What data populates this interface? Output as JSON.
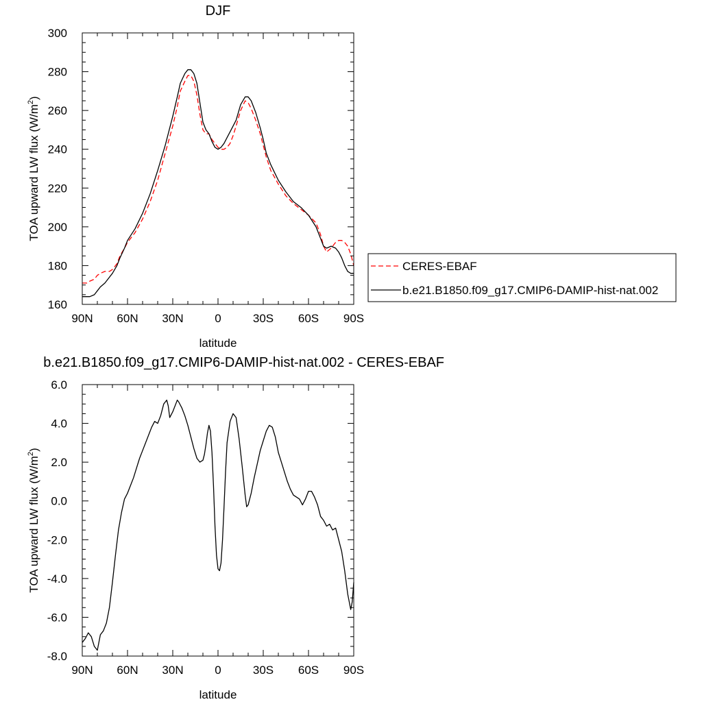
{
  "chart_data": [
    {
      "type": "line",
      "title": "DJF",
      "xlabel": "latitude",
      "ylabel_main": "TOA upward LW flux (W/m",
      "ylabel_sup": "2",
      "ylabel_close": ")",
      "xlim": [
        90,
        -90
      ],
      "ylim": [
        160,
        300
      ],
      "x_ticks": [
        {
          "value": 90,
          "label": "90N"
        },
        {
          "value": 60,
          "label": "60N"
        },
        {
          "value": 30,
          "label": "30N"
        },
        {
          "value": 0,
          "label": "0"
        },
        {
          "value": -30,
          "label": "30S"
        },
        {
          "value": -60,
          "label": "60S"
        },
        {
          "value": -90,
          "label": "90S"
        }
      ],
      "y_ticks": [
        {
          "value": 160,
          "label": "160"
        },
        {
          "value": 180,
          "label": "180"
        },
        {
          "value": 200,
          "label": "200"
        },
        {
          "value": 220,
          "label": "220"
        },
        {
          "value": 240,
          "label": "240"
        },
        {
          "value": 260,
          "label": "260"
        },
        {
          "value": 280,
          "label": "280"
        },
        {
          "value": 300,
          "label": "300"
        }
      ],
      "legend": "right",
      "series": [
        {
          "name": "CERES-EBAF",
          "color": "#ff0000",
          "style": "dashed",
          "x": [
            90,
            87,
            85,
            82,
            80,
            78,
            75,
            72,
            70,
            67,
            65,
            62,
            60,
            55,
            50,
            45,
            40,
            35,
            30,
            27,
            25,
            22,
            20,
            18,
            16,
            14,
            12,
            10,
            8,
            6,
            4,
            2,
            0,
            -2,
            -4,
            -6,
            -8,
            -10,
            -12,
            -15,
            -18,
            -20,
            -22,
            -25,
            -28,
            -30,
            -32,
            -35,
            -40,
            -45,
            -50,
            -55,
            -60,
            -65,
            -68,
            -70,
            -72,
            -75,
            -78,
            -80,
            -82,
            -84,
            -86,
            -88,
            -90
          ],
          "y": [
            171,
            171,
            172,
            173,
            175,
            176,
            177,
            177,
            178,
            181,
            185,
            189,
            192,
            197,
            204,
            213,
            224,
            238,
            252,
            262,
            270,
            275,
            278,
            278,
            275,
            268,
            258,
            250,
            248,
            248,
            245,
            243,
            241,
            240,
            240,
            241,
            243,
            247,
            252,
            260,
            265,
            264,
            261,
            255,
            248,
            242,
            236,
            229,
            222,
            216,
            212,
            209,
            206,
            202,
            196,
            190,
            187,
            189,
            192,
            193,
            193,
            192,
            190,
            186,
            180
          ]
        },
        {
          "name": "b.e21.B1850.f09_g17.CMIP6-DAMIP-hist-nat.002",
          "color": "#000000",
          "style": "solid",
          "x": [
            90,
            87,
            85,
            82,
            80,
            78,
            75,
            72,
            70,
            67,
            65,
            62,
            60,
            55,
            50,
            45,
            40,
            35,
            30,
            27,
            25,
            22,
            20,
            18,
            16,
            14,
            12,
            10,
            8,
            6,
            4,
            2,
            0,
            -2,
            -4,
            -6,
            -8,
            -10,
            -12,
            -15,
            -18,
            -20,
            -22,
            -25,
            -28,
            -30,
            -32,
            -35,
            -40,
            -45,
            -50,
            -55,
            -60,
            -65,
            -68,
            -70,
            -72,
            -75,
            -78,
            -80,
            -82,
            -84,
            -86,
            -88,
            -90
          ],
          "y": [
            164,
            164,
            164,
            165,
            167,
            169,
            171,
            174,
            176,
            180,
            184,
            189,
            193,
            199,
            207,
            217,
            229,
            242,
            257,
            267,
            274,
            279,
            281,
            281,
            279,
            274,
            264,
            254,
            250,
            248,
            244,
            241,
            240,
            241,
            243,
            246,
            249,
            252,
            255,
            263,
            267,
            267,
            265,
            259,
            251,
            245,
            238,
            232,
            224,
            218,
            213,
            210,
            206,
            200,
            194,
            190,
            189,
            190,
            189,
            187,
            184,
            180,
            177,
            176,
            176
          ]
        }
      ]
    },
    {
      "type": "line",
      "title": "b.e21.B1850.f09_g17.CMIP6-DAMIP-hist-nat.002 - CERES-EBAF",
      "xlabel": "latitude",
      "ylabel_main": "TOA upward LW flux (W/m",
      "ylabel_sup": "2",
      "ylabel_close": ")",
      "xlim": [
        90,
        -90
      ],
      "ylim": [
        -8,
        6
      ],
      "x_ticks": [
        {
          "value": 90,
          "label": "90N"
        },
        {
          "value": 60,
          "label": "60N"
        },
        {
          "value": 30,
          "label": "30N"
        },
        {
          "value": 0,
          "label": "0"
        },
        {
          "value": -30,
          "label": "30S"
        },
        {
          "value": -60,
          "label": "60S"
        },
        {
          "value": -90,
          "label": "90S"
        }
      ],
      "y_ticks": [
        {
          "value": -8,
          "label": "-8.0"
        },
        {
          "value": -6,
          "label": "-6.0"
        },
        {
          "value": -4,
          "label": "-4.0"
        },
        {
          "value": -2,
          "label": "-2.0"
        },
        {
          "value": 0,
          "label": "0.0"
        },
        {
          "value": 2,
          "label": "2.0"
        },
        {
          "value": 4,
          "label": "4.0"
        },
        {
          "value": 6,
          "label": "6.0"
        }
      ],
      "series": [
        {
          "color": "#000000",
          "style": "solid",
          "x": [
            90,
            88,
            86,
            84,
            82,
            80,
            78,
            76,
            74,
            72,
            70,
            68,
            66,
            64,
            62,
            60,
            58,
            56,
            54,
            52,
            50,
            48,
            46,
            44,
            42,
            40,
            38,
            36,
            34,
            33,
            32,
            30,
            28,
            27,
            26,
            24,
            22,
            20,
            18,
            16,
            14,
            12,
            10,
            9,
            8,
            7,
            6,
            5,
            4,
            3,
            2,
            1,
            0,
            -1,
            -2,
            -3,
            -4,
            -5,
            -6,
            -8,
            -10,
            -12,
            -14,
            -16,
            -18,
            -19,
            -20,
            -22,
            -24,
            -26,
            -28,
            -30,
            -32,
            -34,
            -36,
            -38,
            -40,
            -42,
            -44,
            -46,
            -48,
            -50,
            -52,
            -54,
            -56,
            -58,
            -60,
            -62,
            -64,
            -66,
            -68,
            -70,
            -72,
            -74,
            -76,
            -78,
            -80,
            -82,
            -84,
            -86,
            -88,
            -89,
            -90
          ],
          "y": [
            -7.3,
            -7.1,
            -6.8,
            -7.0,
            -7.5,
            -7.7,
            -6.9,
            -6.7,
            -6.3,
            -5.5,
            -4.2,
            -2.8,
            -1.5,
            -0.6,
            0.1,
            0.4,
            0.8,
            1.2,
            1.7,
            2.2,
            2.6,
            3.0,
            3.4,
            3.8,
            4.1,
            4.0,
            4.4,
            5.0,
            5.2,
            4.9,
            4.3,
            4.6,
            5.0,
            5.2,
            5.1,
            4.8,
            4.4,
            3.9,
            3.3,
            2.7,
            2.2,
            2.0,
            2.1,
            2.4,
            2.9,
            3.5,
            3.9,
            3.6,
            2.5,
            0.8,
            -1.3,
            -2.8,
            -3.5,
            -3.6,
            -3.2,
            -2.0,
            -0.3,
            1.5,
            3.0,
            4.1,
            4.5,
            4.3,
            3.2,
            1.8,
            0.3,
            -0.3,
            -0.2,
            0.4,
            1.2,
            1.9,
            2.6,
            3.1,
            3.6,
            3.9,
            3.8,
            3.3,
            2.5,
            2.0,
            1.5,
            1.0,
            0.6,
            0.3,
            0.2,
            0.1,
            -0.2,
            0.1,
            0.5,
            0.5,
            0.2,
            -0.2,
            -0.8,
            -1.0,
            -1.3,
            -1.2,
            -1.5,
            -1.4,
            -2.0,
            -2.6,
            -3.6,
            -4.8,
            -5.6,
            -5.2,
            -4.2
          ]
        }
      ]
    }
  ]
}
